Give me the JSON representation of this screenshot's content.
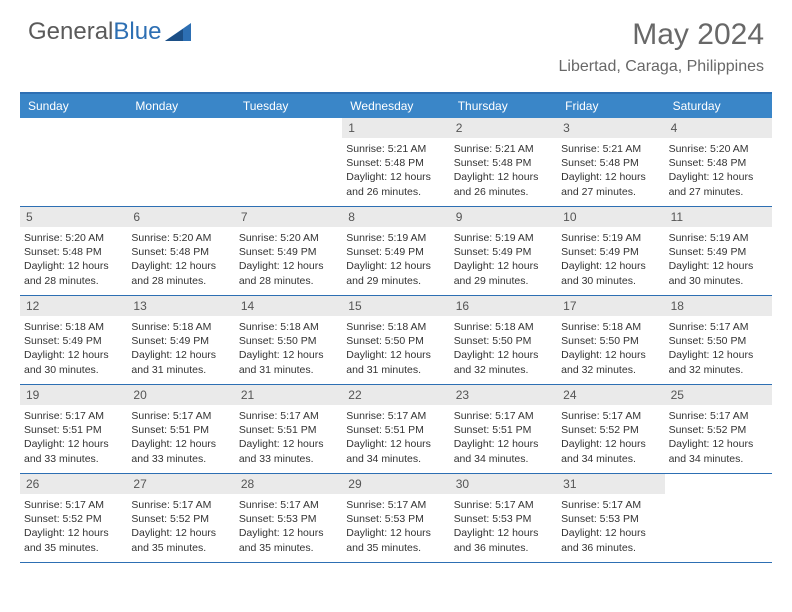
{
  "brand": {
    "part1": "General",
    "part2": "Blue"
  },
  "title": "May 2024",
  "location": "Libertad, Caraga, Philippines",
  "day_headers": [
    "Sunday",
    "Monday",
    "Tuesday",
    "Wednesday",
    "Thursday",
    "Friday",
    "Saturday"
  ],
  "colors": {
    "header_bg": "#3a86c8",
    "border_rule": "#2d6fb3",
    "daynum_bg": "#eaeaea",
    "text_muted": "#686868",
    "text": "#333333",
    "logo_blue": "#2d6fb3"
  },
  "fonts": {
    "title_size": 30,
    "location_size": 16,
    "head_size": 12,
    "daynum_size": 12,
    "info_size": 10.5
  },
  "weeks": [
    [
      {
        "n": "",
        "sunrise": "",
        "sunset": "",
        "daylight": ""
      },
      {
        "n": "",
        "sunrise": "",
        "sunset": "",
        "daylight": ""
      },
      {
        "n": "",
        "sunrise": "",
        "sunset": "",
        "daylight": ""
      },
      {
        "n": "1",
        "sunrise": "Sunrise: 5:21 AM",
        "sunset": "Sunset: 5:48 PM",
        "daylight": "Daylight: 12 hours and 26 minutes."
      },
      {
        "n": "2",
        "sunrise": "Sunrise: 5:21 AM",
        "sunset": "Sunset: 5:48 PM",
        "daylight": "Daylight: 12 hours and 26 minutes."
      },
      {
        "n": "3",
        "sunrise": "Sunrise: 5:21 AM",
        "sunset": "Sunset: 5:48 PM",
        "daylight": "Daylight: 12 hours and 27 minutes."
      },
      {
        "n": "4",
        "sunrise": "Sunrise: 5:20 AM",
        "sunset": "Sunset: 5:48 PM",
        "daylight": "Daylight: 12 hours and 27 minutes."
      }
    ],
    [
      {
        "n": "5",
        "sunrise": "Sunrise: 5:20 AM",
        "sunset": "Sunset: 5:48 PM",
        "daylight": "Daylight: 12 hours and 28 minutes."
      },
      {
        "n": "6",
        "sunrise": "Sunrise: 5:20 AM",
        "sunset": "Sunset: 5:48 PM",
        "daylight": "Daylight: 12 hours and 28 minutes."
      },
      {
        "n": "7",
        "sunrise": "Sunrise: 5:20 AM",
        "sunset": "Sunset: 5:49 PM",
        "daylight": "Daylight: 12 hours and 28 minutes."
      },
      {
        "n": "8",
        "sunrise": "Sunrise: 5:19 AM",
        "sunset": "Sunset: 5:49 PM",
        "daylight": "Daylight: 12 hours and 29 minutes."
      },
      {
        "n": "9",
        "sunrise": "Sunrise: 5:19 AM",
        "sunset": "Sunset: 5:49 PM",
        "daylight": "Daylight: 12 hours and 29 minutes."
      },
      {
        "n": "10",
        "sunrise": "Sunrise: 5:19 AM",
        "sunset": "Sunset: 5:49 PM",
        "daylight": "Daylight: 12 hours and 30 minutes."
      },
      {
        "n": "11",
        "sunrise": "Sunrise: 5:19 AM",
        "sunset": "Sunset: 5:49 PM",
        "daylight": "Daylight: 12 hours and 30 minutes."
      }
    ],
    [
      {
        "n": "12",
        "sunrise": "Sunrise: 5:18 AM",
        "sunset": "Sunset: 5:49 PM",
        "daylight": "Daylight: 12 hours and 30 minutes."
      },
      {
        "n": "13",
        "sunrise": "Sunrise: 5:18 AM",
        "sunset": "Sunset: 5:49 PM",
        "daylight": "Daylight: 12 hours and 31 minutes."
      },
      {
        "n": "14",
        "sunrise": "Sunrise: 5:18 AM",
        "sunset": "Sunset: 5:50 PM",
        "daylight": "Daylight: 12 hours and 31 minutes."
      },
      {
        "n": "15",
        "sunrise": "Sunrise: 5:18 AM",
        "sunset": "Sunset: 5:50 PM",
        "daylight": "Daylight: 12 hours and 31 minutes."
      },
      {
        "n": "16",
        "sunrise": "Sunrise: 5:18 AM",
        "sunset": "Sunset: 5:50 PM",
        "daylight": "Daylight: 12 hours and 32 minutes."
      },
      {
        "n": "17",
        "sunrise": "Sunrise: 5:18 AM",
        "sunset": "Sunset: 5:50 PM",
        "daylight": "Daylight: 12 hours and 32 minutes."
      },
      {
        "n": "18",
        "sunrise": "Sunrise: 5:17 AM",
        "sunset": "Sunset: 5:50 PM",
        "daylight": "Daylight: 12 hours and 32 minutes."
      }
    ],
    [
      {
        "n": "19",
        "sunrise": "Sunrise: 5:17 AM",
        "sunset": "Sunset: 5:51 PM",
        "daylight": "Daylight: 12 hours and 33 minutes."
      },
      {
        "n": "20",
        "sunrise": "Sunrise: 5:17 AM",
        "sunset": "Sunset: 5:51 PM",
        "daylight": "Daylight: 12 hours and 33 minutes."
      },
      {
        "n": "21",
        "sunrise": "Sunrise: 5:17 AM",
        "sunset": "Sunset: 5:51 PM",
        "daylight": "Daylight: 12 hours and 33 minutes."
      },
      {
        "n": "22",
        "sunrise": "Sunrise: 5:17 AM",
        "sunset": "Sunset: 5:51 PM",
        "daylight": "Daylight: 12 hours and 34 minutes."
      },
      {
        "n": "23",
        "sunrise": "Sunrise: 5:17 AM",
        "sunset": "Sunset: 5:51 PM",
        "daylight": "Daylight: 12 hours and 34 minutes."
      },
      {
        "n": "24",
        "sunrise": "Sunrise: 5:17 AM",
        "sunset": "Sunset: 5:52 PM",
        "daylight": "Daylight: 12 hours and 34 minutes."
      },
      {
        "n": "25",
        "sunrise": "Sunrise: 5:17 AM",
        "sunset": "Sunset: 5:52 PM",
        "daylight": "Daylight: 12 hours and 34 minutes."
      }
    ],
    [
      {
        "n": "26",
        "sunrise": "Sunrise: 5:17 AM",
        "sunset": "Sunset: 5:52 PM",
        "daylight": "Daylight: 12 hours and 35 minutes."
      },
      {
        "n": "27",
        "sunrise": "Sunrise: 5:17 AM",
        "sunset": "Sunset: 5:52 PM",
        "daylight": "Daylight: 12 hours and 35 minutes."
      },
      {
        "n": "28",
        "sunrise": "Sunrise: 5:17 AM",
        "sunset": "Sunset: 5:53 PM",
        "daylight": "Daylight: 12 hours and 35 minutes."
      },
      {
        "n": "29",
        "sunrise": "Sunrise: 5:17 AM",
        "sunset": "Sunset: 5:53 PM",
        "daylight": "Daylight: 12 hours and 35 minutes."
      },
      {
        "n": "30",
        "sunrise": "Sunrise: 5:17 AM",
        "sunset": "Sunset: 5:53 PM",
        "daylight": "Daylight: 12 hours and 36 minutes."
      },
      {
        "n": "31",
        "sunrise": "Sunrise: 5:17 AM",
        "sunset": "Sunset: 5:53 PM",
        "daylight": "Daylight: 12 hours and 36 minutes."
      },
      {
        "n": "",
        "sunrise": "",
        "sunset": "",
        "daylight": ""
      }
    ]
  ]
}
